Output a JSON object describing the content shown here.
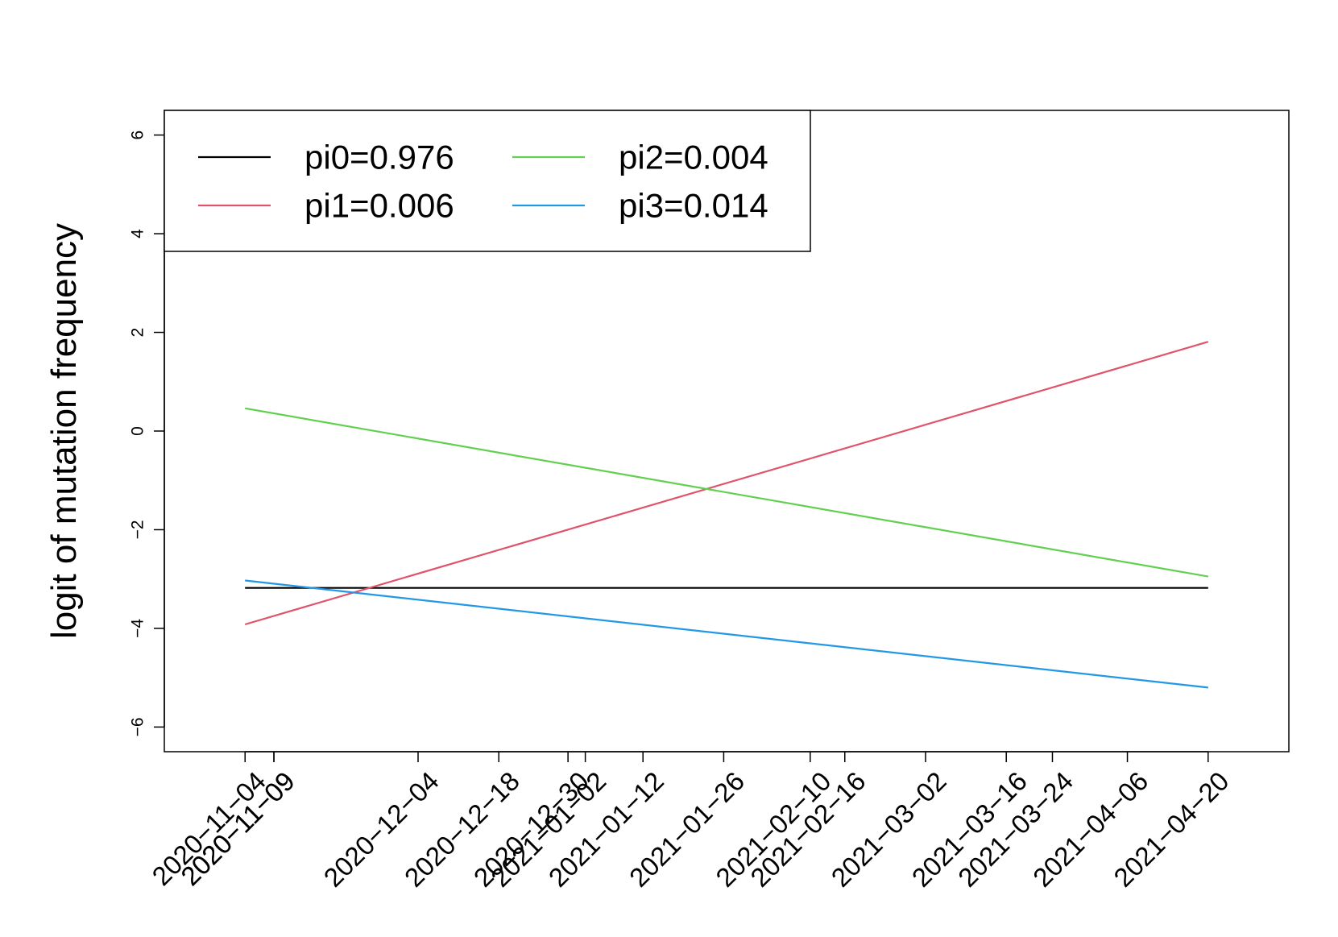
{
  "chart_data": {
    "type": "line",
    "title": "",
    "xlabel": "",
    "ylabel": "logit of mutation frequency",
    "x_tick_labels": [
      "2020−11−04",
      "2020−11−09",
      "2020−11−09",
      "2020−12−04",
      "2020−12−18",
      "2020−12−30",
      "2021−01−02",
      "2021−01−12",
      "2021−01−26",
      "2021−02−10",
      "2021−02−16",
      "2021−03−02",
      "2021−03−16",
      "2021−03−24",
      "2021−04−06",
      "2021−04−20"
    ],
    "x_tick_dates": [
      "2020-11-04",
      "2020-11-09",
      "2020-11-09",
      "2020-12-04",
      "2020-12-18",
      "2020-12-30",
      "2021-01-02",
      "2021-01-12",
      "2021-01-26",
      "2021-02-10",
      "2021-02-16",
      "2021-03-02",
      "2021-03-16",
      "2021-03-24",
      "2021-04-06",
      "2021-04-20"
    ],
    "xlim": [
      "2020-10-21",
      "2021-05-04"
    ],
    "y_ticks": [
      -6,
      -4,
      -2,
      0,
      2,
      4,
      6
    ],
    "y_tick_labels": [
      "−6",
      "−4",
      "−2",
      "0",
      "2",
      "4",
      "6"
    ],
    "ylim": [
      -6.5,
      6.5
    ],
    "grid": false,
    "legend_position": "top-left",
    "series": [
      {
        "name": "pi0=0.976",
        "color": "#000000",
        "x": [
          "2020-11-04",
          "2021-04-20"
        ],
        "y": [
          -3.18,
          -3.18
        ]
      },
      {
        "name": "pi1=0.006",
        "color": "#DF536B",
        "x": [
          "2020-11-04",
          "2021-04-20"
        ],
        "y": [
          -3.92,
          1.81
        ]
      },
      {
        "name": "pi2=0.004",
        "color": "#61D04F",
        "x": [
          "2020-11-04",
          "2021-04-20"
        ],
        "y": [
          0.46,
          -2.95
        ]
      },
      {
        "name": "pi3=0.014",
        "color": "#2297E6",
        "x": [
          "2020-11-04",
          "2021-04-20"
        ],
        "y": [
          -3.03,
          -5.2
        ]
      }
    ]
  }
}
